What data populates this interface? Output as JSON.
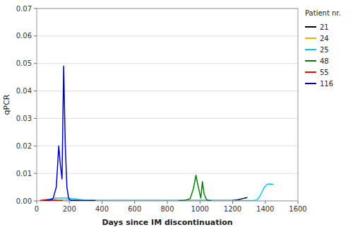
{
  "chart_data": {
    "type": "line",
    "xlabel": "Days since IM discontinuation",
    "ylabel": "qPCR",
    "xlim": [
      0,
      1600
    ],
    "ylim": [
      0,
      0.07
    ],
    "xticks": [
      0,
      200,
      400,
      600,
      800,
      1000,
      1200,
      1400,
      1600
    ],
    "yticks": [
      {
        "value": 0,
        "label": "0.00"
      },
      0.01,
      0.02,
      0.03,
      0.04,
      0.05,
      0.06,
      0.07
    ],
    "grid": "y",
    "legend": "right",
    "legend_title": "Patient nr.",
    "series": [
      {
        "name": "21",
        "color": "#000000",
        "x": [
          60,
          90,
          120,
          150,
          170,
          200,
          230,
          270,
          310,
          350,
          400,
          500,
          600,
          700,
          800,
          900,
          1000,
          1100,
          1150,
          1200,
          1230,
          1260,
          1290
        ],
        "values": [
          0.0,
          0.0001,
          0.0001,
          0.0001,
          0.0001,
          0.0002,
          0.0002,
          0.0001,
          0.0001,
          0.0001,
          0.0001,
          0.0001,
          0.0001,
          0.0001,
          0.0001,
          0.0001,
          0.0001,
          0.0001,
          0.0001,
          0.0002,
          0.0004,
          0.0008,
          0.0012
        ]
      },
      {
        "name": "24",
        "color": "#FFA500",
        "x": [
          20,
          40,
          60,
          80,
          100,
          120,
          140,
          160,
          180,
          210
        ],
        "values": [
          0.0001,
          0.0001,
          0.0002,
          0.0003,
          0.0003,
          0.0003,
          0.0002,
          0.0002,
          0.0001,
          0.0001
        ]
      },
      {
        "name": "25",
        "color": "#00CCFF",
        "x": [
          30,
          60,
          120,
          180,
          240,
          300,
          360,
          420,
          500,
          600,
          700,
          800,
          900,
          1000,
          1100,
          1200,
          1280,
          1320,
          1350,
          1370,
          1390,
          1410,
          1430,
          1450
        ],
        "values": [
          0.0001,
          0.0005,
          0.001,
          0.001,
          0.0007,
          0.0002,
          0.0001,
          0.0001,
          0.0001,
          0.0001,
          0.0001,
          0.0001,
          0.0001,
          0.0001,
          0.0001,
          0.0001,
          0.0001,
          0.0001,
          0.0003,
          0.002,
          0.0045,
          0.006,
          0.0062,
          0.006
        ]
      },
      {
        "name": "48",
        "color": "#008000",
        "x": [
          870,
          900,
          940,
          960,
          975,
          990,
          1005,
          1015,
          1025,
          1040,
          1055,
          1070
        ],
        "values": [
          0.0001,
          0.0001,
          0.0008,
          0.0045,
          0.0093,
          0.005,
          0.001,
          0.007,
          0.0025,
          0.0005,
          0.0001,
          0.0001
        ]
      },
      {
        "name": "55",
        "color": "#FF0000",
        "x": [
          20,
          40,
          60,
          80,
          100,
          120,
          140,
          160
        ],
        "values": [
          0.0001,
          0.0003,
          0.0004,
          0.0003,
          0.0003,
          0.0002,
          0.0001,
          0.0001
        ]
      },
      {
        "name": "116",
        "color": "#0000CD",
        "x": [
          40,
          70,
          100,
          120,
          135,
          145,
          155,
          165,
          175,
          185,
          195,
          205,
          215,
          230,
          250,
          270,
          300,
          330,
          360
        ],
        "values": [
          0.0001,
          0.0002,
          0.0008,
          0.005,
          0.02,
          0.013,
          0.008,
          0.049,
          0.02,
          0.005,
          0.001,
          0.0003,
          0.0001,
          0.0001,
          0.0001,
          0.0001,
          0.0001,
          0.0001,
          0.0001
        ]
      }
    ]
  }
}
